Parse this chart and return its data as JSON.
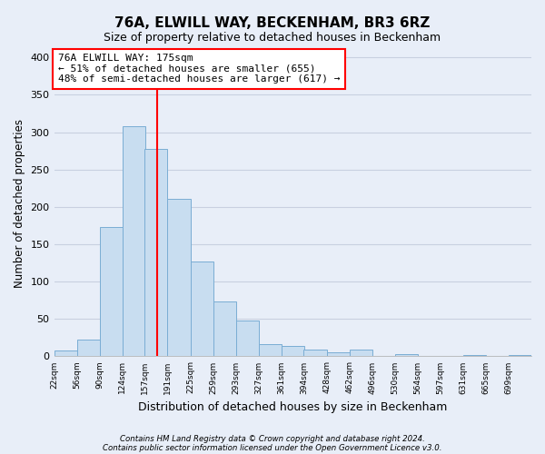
{
  "title": "76A, ELWILL WAY, BECKENHAM, BR3 6RZ",
  "subtitle": "Size of property relative to detached houses in Beckenham",
  "xlabel": "Distribution of detached houses by size in Beckenham",
  "ylabel": "Number of detached properties",
  "bar_edges": [
    22,
    56,
    90,
    124,
    157,
    191,
    225,
    259,
    293,
    327,
    361,
    394,
    428,
    462,
    496,
    530,
    564,
    597,
    631,
    665,
    699
  ],
  "bar_heights": [
    8,
    22,
    173,
    308,
    277,
    211,
    127,
    73,
    48,
    16,
    14,
    9,
    5,
    9,
    0,
    3,
    0,
    0,
    2,
    0,
    2
  ],
  "bar_color": "#c8ddf0",
  "bar_edge_color": "#7aadd4",
  "property_line_x": 175,
  "property_line_color": "red",
  "ylim": [
    0,
    410
  ],
  "yticks": [
    0,
    50,
    100,
    150,
    200,
    250,
    300,
    350,
    400
  ],
  "tick_labels": [
    "22sqm",
    "56sqm",
    "90sqm",
    "124sqm",
    "157sqm",
    "191sqm",
    "225sqm",
    "259sqm",
    "293sqm",
    "327sqm",
    "361sqm",
    "394sqm",
    "428sqm",
    "462sqm",
    "496sqm",
    "530sqm",
    "564sqm",
    "597sqm",
    "631sqm",
    "665sqm",
    "699sqm"
  ],
  "annotation_title": "76A ELWILL WAY: 175sqm",
  "annotation_line1": "← 51% of detached houses are smaller (655)",
  "annotation_line2": "48% of semi-detached houses are larger (617) →",
  "annotation_box_color": "white",
  "annotation_box_edge": "red",
  "footnote1": "Contains HM Land Registry data © Crown copyright and database right 2024.",
  "footnote2": "Contains public sector information licensed under the Open Government Licence v3.0.",
  "bg_color": "#e8eef8"
}
